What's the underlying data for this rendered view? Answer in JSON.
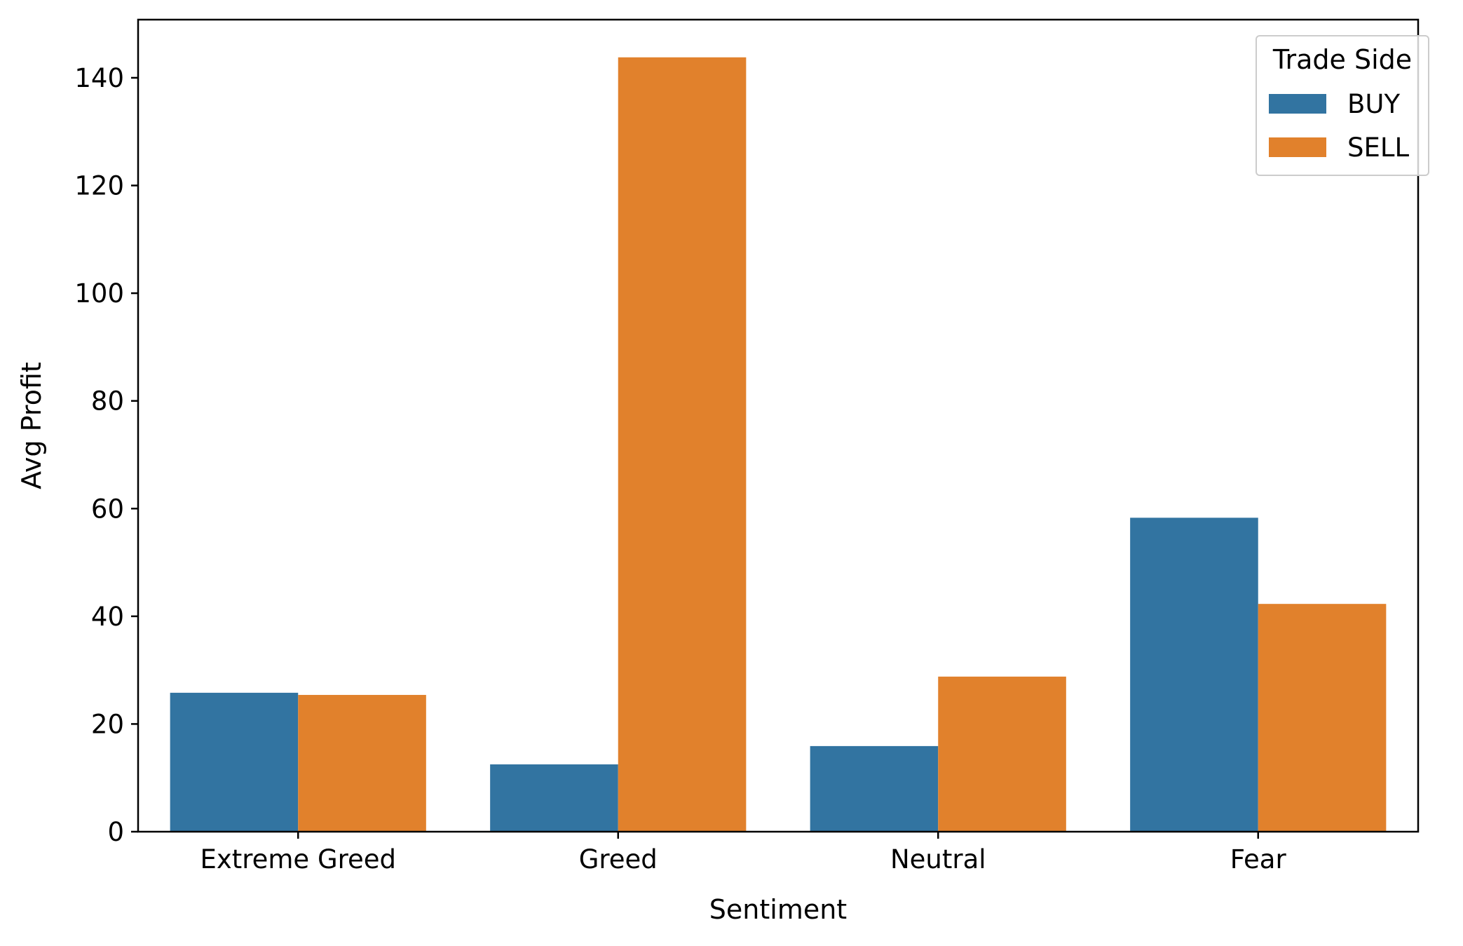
{
  "chart_data": {
    "type": "bar",
    "title": "",
    "xlabel": "Sentiment",
    "ylabel": "Avg Profit",
    "categories": [
      "Extreme Greed",
      "Greed",
      "Neutral",
      "Fear"
    ],
    "series": [
      {
        "name": "BUY",
        "color": "#3274a1",
        "values": [
          25.8,
          12.5,
          15.9,
          58.3
        ]
      },
      {
        "name": "SELL",
        "color": "#e1812c",
        "values": [
          25.4,
          143.8,
          28.8,
          42.3
        ]
      }
    ],
    "ylim": [
      0,
      150.8
    ],
    "yticks": [
      0,
      20,
      40,
      60,
      80,
      100,
      120,
      140
    ],
    "grid": false,
    "legend": {
      "title": "Trade Side",
      "placement": "top-right"
    }
  }
}
